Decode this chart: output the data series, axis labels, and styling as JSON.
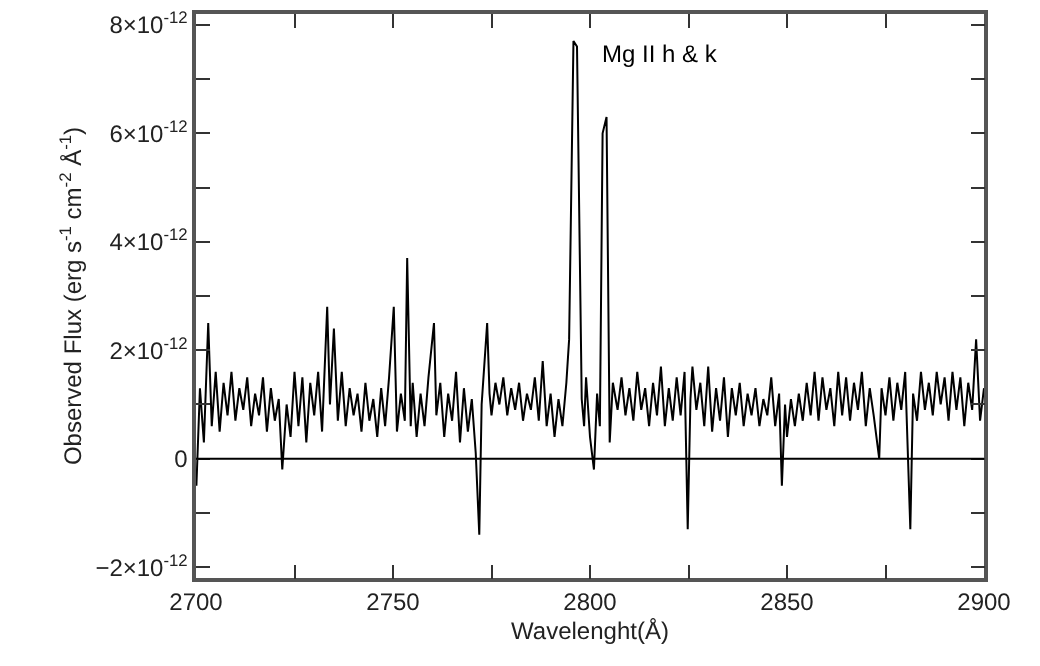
{
  "chart_data": {
    "type": "line",
    "xlabel": "Wavelenght(Å)",
    "ylabel": "Observed Flux (erg s$^{-1}$ cm$^{-2}$ Å$^{-1}$)",
    "annotations": [
      "Mg II h & k"
    ],
    "xlim": [
      2700,
      2900
    ],
    "xticks": [
      2700,
      {
        "value": 2725,
        "label": null
      },
      2750,
      {
        "value": 2775,
        "label": null
      },
      2800,
      {
        "value": 2825,
        "label": null
      },
      2850,
      {
        "value": 2875,
        "label": null
      },
      2900
    ],
    "ylim": [
      -2.2e-12,
      8.2e-12
    ],
    "yticks": [
      {
        "value": -2e-12,
        "label": "−2×10$^{-12}$"
      },
      {
        "value": -1e-12,
        "label": null
      },
      {
        "value": 0,
        "label": "0"
      },
      {
        "value": 1e-12,
        "label": null
      },
      {
        "value": 2e-12,
        "label": "2×10$^{-12}$"
      },
      {
        "value": 3e-12,
        "label": null
      },
      {
        "value": 4e-12,
        "label": "4×10$^{-12}$"
      },
      {
        "value": 5e-12,
        "label": null
      },
      {
        "value": 6e-12,
        "label": "6×10$^{-12}$"
      },
      {
        "value": 7e-12,
        "label": null
      },
      {
        "value": 8e-12,
        "label": "8×10$^{-12}$"
      }
    ],
    "ref_lines": [
      {
        "axis": "y",
        "value": 0,
        "color": "#000000"
      }
    ],
    "marker": "none",
    "line_style": "solid",
    "series": [
      {
        "color": "#000000",
        "x": [
          2700.1,
          2701,
          2702,
          2703.1,
          2704,
          2705,
          2706,
          2707,
          2708,
          2709,
          2710,
          2711,
          2712,
          2713,
          2714,
          2715,
          2716,
          2717,
          2718,
          2719,
          2720,
          2721,
          2721.9,
          2723,
          2724,
          2725,
          2726,
          2727,
          2728,
          2729,
          2730,
          2731,
          2732,
          2733.3,
          2734,
          2735,
          2736,
          2737,
          2738,
          2739,
          2740,
          2741,
          2742,
          2743,
          2744,
          2745,
          2746,
          2747,
          2748,
          2749,
          2750.2,
          2751,
          2752,
          2753,
          2753.6,
          2754.5,
          2755,
          2756,
          2757,
          2758,
          2759,
          2760.4,
          2761,
          2762,
          2763,
          2764,
          2765,
          2766,
          2767,
          2768,
          2769,
          2770,
          2771,
          2771.9,
          2772.5,
          2773.9,
          2774.5,
          2775,
          2776,
          2777,
          2778,
          2779,
          2780,
          2781,
          2782,
          2783,
          2784,
          2785,
          2786,
          2787,
          2788,
          2789,
          2790,
          2791,
          2792,
          2793,
          2794,
          2794.7,
          2795.8,
          2796.7,
          2797.9,
          2798.5,
          2799,
          2800,
          2801,
          2801.8,
          2802.5,
          2803.2,
          2804.2,
          2805,
          2805.8,
          2807,
          2808,
          2809,
          2810,
          2811,
          2812,
          2813,
          2814,
          2815,
          2816,
          2817,
          2818,
          2819,
          2820,
          2821,
          2822,
          2823,
          2824,
          2824.8,
          2825.5,
          2826,
          2827,
          2828,
          2829,
          2830,
          2831,
          2832,
          2833,
          2834,
          2835,
          2836,
          2837,
          2838,
          2839,
          2840,
          2841,
          2842,
          2843,
          2844,
          2845,
          2846,
          2847,
          2848,
          2848.7,
          2849.5,
          2850,
          2851,
          2852,
          2853,
          2854,
          2855,
          2856,
          2857,
          2858,
          2859,
          2860,
          2861,
          2862,
          2863,
          2864,
          2865,
          2866,
          2867,
          2868,
          2869,
          2870,
          2871,
          2872,
          2873.4,
          2874,
          2875,
          2876,
          2877,
          2878,
          2879,
          2880,
          2881.3,
          2882,
          2883,
          2884,
          2885,
          2886,
          2887,
          2888,
          2889,
          2890,
          2891,
          2892,
          2893,
          2894,
          2895,
          2896,
          2897,
          2898,
          2899,
          2900
        ],
        "values": [
          -5e-13,
          1.3e-12,
          3e-13,
          2.5e-12,
          6e-13,
          1.6e-12,
          5e-13,
          1.4e-12,
          8e-13,
          1.6e-12,
          7e-13,
          1.3e-12,
          9e-13,
          1.5e-12,
          6e-13,
          1.2e-12,
          8e-13,
          1.5e-12,
          5e-13,
          1.3e-12,
          7e-13,
          1.1e-12,
          -2e-13,
          1e-12,
          4e-13,
          1.6e-12,
          6e-13,
          1.5e-12,
          3e-13,
          1.4e-12,
          8e-13,
          1.6e-12,
          5e-13,
          2.8e-12,
          1e-12,
          2.4e-12,
          7e-13,
          1.6e-12,
          6e-13,
          1.3e-12,
          8e-13,
          1.2e-12,
          5e-13,
          1.4e-12,
          7e-13,
          1.1e-12,
          4e-13,
          1.3e-12,
          6e-13,
          1.5e-12,
          2.8e-12,
          5e-13,
          1.2e-12,
          7e-13,
          3.7e-12,
          6e-13,
          1.4e-12,
          4e-13,
          1.2e-12,
          6e-13,
          1.5e-12,
          2.5e-12,
          8e-13,
          1.4e-12,
          4e-13,
          1.2e-12,
          7e-13,
          1.6e-12,
          3e-13,
          1.3e-12,
          5e-13,
          1.1e-12,
          1e-13,
          -1.4e-12,
          1e-12,
          2.5e-12,
          1.2e-12,
          8e-13,
          1.4e-12,
          1e-12,
          1.5e-12,
          8e-13,
          1.3e-12,
          9e-13,
          1.4e-12,
          7e-13,
          1.2e-12,
          9e-13,
          1.5e-12,
          7e-13,
          1.8e-12,
          6e-13,
          1.2e-12,
          4e-13,
          1.1e-12,
          6e-13,
          1.4e-12,
          2.2e-12,
          7.7e-12,
          7.6e-12,
          1.1e-12,
          6e-13,
          1.5e-12,
          4e-13,
          -2e-13,
          1.2e-12,
          6e-13,
          6e-12,
          6.3e-12,
          3e-13,
          1.4e-12,
          9e-13,
          1.5e-12,
          8e-13,
          1.3e-12,
          7e-13,
          1.6e-12,
          9e-13,
          1.3e-12,
          6e-13,
          1.4e-12,
          8e-13,
          1.7e-12,
          6e-13,
          1.3e-12,
          7e-13,
          1.5e-12,
          8e-13,
          1.6e-12,
          -1.3e-12,
          1.1e-12,
          1.7e-12,
          9e-13,
          1.4e-12,
          6e-13,
          1.7e-12,
          5e-13,
          1.3e-12,
          7e-13,
          1.5e-12,
          4e-13,
          1.3e-12,
          8e-13,
          1.4e-12,
          6e-13,
          1.2e-12,
          8e-13,
          1.3e-12,
          6e-13,
          1.1e-12,
          8e-13,
          1.5e-12,
          6e-13,
          1.2e-12,
          -5e-13,
          1e-12,
          4e-13,
          1.1e-12,
          6e-13,
          1.2e-12,
          7e-13,
          1.4e-12,
          8e-13,
          1.6e-12,
          7e-13,
          1.5e-12,
          9e-13,
          1.3e-12,
          6e-13,
          1.6e-12,
          8e-13,
          1.5e-12,
          7e-13,
          1.4e-12,
          9e-13,
          1.6e-12,
          6e-13,
          1.3e-12,
          8e-13,
          0.0,
          1.3e-12,
          8e-13,
          1.5e-12,
          7e-13,
          1.4e-12,
          9e-13,
          1.6e-12,
          -1.3e-12,
          1.2e-12,
          7e-13,
          1.6e-12,
          9e-13,
          1.4e-12,
          8e-13,
          1.6e-12,
          1e-12,
          1.5e-12,
          7e-13,
          1.6e-12,
          9e-13,
          1.5e-12,
          6e-13,
          1.4e-12,
          9e-13,
          2.2e-12,
          7e-13,
          1.3e-12
        ]
      }
    ]
  }
}
